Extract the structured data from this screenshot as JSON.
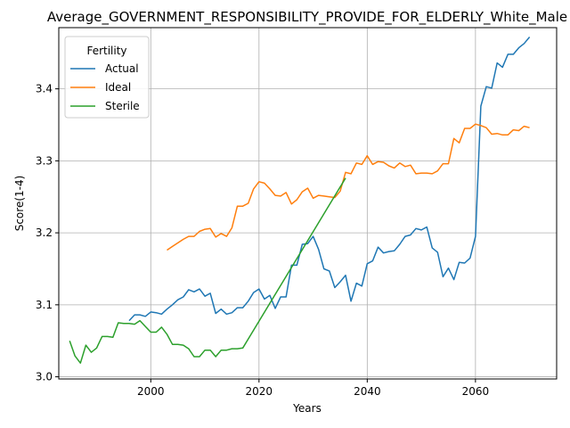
{
  "chart_data": {
    "type": "line",
    "title": "Average_GOVERNMENT_RESPONSIBILITY_PROVIDE_FOR_ELDERLY_White_Male",
    "xlabel": "Years",
    "ylabel": "Score(1-4)",
    "xlim": [
      1983,
      2075
    ],
    "ylim": [
      2.997,
      3.485
    ],
    "xticks": [
      2000,
      2020,
      2040,
      2060
    ],
    "yticks": [
      3.0,
      3.1,
      3.2,
      3.3,
      3.4
    ],
    "grid": true,
    "legend": {
      "title": "Fertility",
      "position": "upper-left"
    },
    "series": [
      {
        "name": "Actual",
        "color": "#1f77b4",
        "x": [
          1996,
          1997,
          1998,
          1999,
          2000,
          2001,
          2002,
          2003,
          2004,
          2005,
          2006,
          2007,
          2008,
          2009,
          2010,
          2011,
          2012,
          2013,
          2014,
          2015,
          2016,
          2017,
          2018,
          2019,
          2020,
          2021,
          2022,
          2023,
          2024,
          2025,
          2026,
          2027,
          2028,
          2029,
          2030,
          2031,
          2032,
          2033,
          2034,
          2035,
          2036,
          2037,
          2038,
          2039,
          2040,
          2041,
          2042,
          2043,
          2044,
          2045,
          2046,
          2047,
          2048,
          2049,
          2050,
          2051,
          2052,
          2053,
          2054,
          2055,
          2056,
          2057,
          2058,
          2059,
          2060,
          2061,
          2062,
          2063,
          2064,
          2065,
          2066,
          2067,
          2068,
          2069,
          2070
        ],
        "y": [
          3.078,
          3.086,
          3.086,
          3.084,
          3.09,
          3.089,
          3.087,
          3.094,
          3.1,
          3.107,
          3.111,
          3.121,
          3.118,
          3.122,
          3.112,
          3.116,
          3.088,
          3.094,
          3.087,
          3.089,
          3.096,
          3.096,
          3.105,
          3.117,
          3.122,
          3.108,
          3.113,
          3.095,
          3.111,
          3.111,
          3.155,
          3.155,
          3.184,
          3.185,
          3.195,
          3.177,
          3.15,
          3.147,
          3.124,
          3.132,
          3.141,
          3.105,
          3.13,
          3.126,
          3.157,
          3.161,
          3.18,
          3.172,
          3.174,
          3.175,
          3.184,
          3.195,
          3.197,
          3.206,
          3.204,
          3.208,
          3.179,
          3.173,
          3.139,
          3.151,
          3.135,
          3.159,
          3.158,
          3.165,
          3.195,
          3.376,
          3.403,
          3.401,
          3.436,
          3.43,
          3.448,
          3.448,
          3.457,
          3.463,
          3.472
        ]
      },
      {
        "name": "Ideal",
        "color": "#ff7f0e",
        "x": [
          2003,
          2004,
          2005,
          2006,
          2007,
          2008,
          2009,
          2010,
          2011,
          2012,
          2013,
          2014,
          2015,
          2016,
          2017,
          2018,
          2019,
          2020,
          2021,
          2022,
          2023,
          2024,
          2025,
          2026,
          2027,
          2028,
          2029,
          2030,
          2031,
          2032,
          2033,
          2034,
          2035,
          2036,
          2037,
          2038,
          2039,
          2040,
          2041,
          2042,
          2043,
          2044,
          2045,
          2046,
          2047,
          2048,
          2049,
          2050,
          2051,
          2052,
          2053,
          2054,
          2055,
          2056,
          2057,
          2058,
          2059,
          2060,
          2061,
          2062,
          2063,
          2064,
          2065,
          2066,
          2067,
          2068,
          2069,
          2070
        ],
        "y": [
          3.176,
          3.181,
          3.186,
          3.191,
          3.195,
          3.195,
          3.202,
          3.205,
          3.206,
          3.194,
          3.199,
          3.195,
          3.207,
          3.237,
          3.237,
          3.241,
          3.261,
          3.271,
          3.269,
          3.261,
          3.252,
          3.251,
          3.256,
          3.24,
          3.246,
          3.257,
          3.262,
          3.248,
          3.252,
          3.251,
          3.25,
          3.249,
          3.258,
          3.284,
          3.282,
          3.297,
          3.295,
          3.307,
          3.295,
          3.299,
          3.298,
          3.293,
          3.29,
          3.297,
          3.292,
          3.294,
          3.282,
          3.283,
          3.283,
          3.282,
          3.286,
          3.296,
          3.296,
          3.331,
          3.325,
          3.345,
          3.345,
          3.351,
          3.349,
          3.346,
          3.337,
          3.338,
          3.336,
          3.336,
          3.343,
          3.342,
          3.348,
          3.346
        ]
      },
      {
        "name": "Sterile",
        "color": "#2ca02c",
        "x": [
          1985,
          1986,
          1987,
          1988,
          1989,
          1990,
          1991,
          1992,
          1993,
          1994,
          1995,
          1996,
          1997,
          1998,
          1999,
          2000,
          2001,
          2002,
          2003,
          2004,
          2005,
          2006,
          2007,
          2008,
          2009,
          2010,
          2011,
          2012,
          2013,
          2014,
          2015,
          2016,
          2017,
          2036
        ],
        "y": [
          3.05,
          3.029,
          3.019,
          3.044,
          3.034,
          3.04,
          3.056,
          3.056,
          3.055,
          3.075,
          3.074,
          3.074,
          3.073,
          3.078,
          3.07,
          3.062,
          3.062,
          3.069,
          3.059,
          3.045,
          3.045,
          3.044,
          3.039,
          3.028,
          3.028,
          3.037,
          3.037,
          3.028,
          3.037,
          3.037,
          3.039,
          3.039,
          3.04,
          3.276
        ]
      }
    ]
  }
}
